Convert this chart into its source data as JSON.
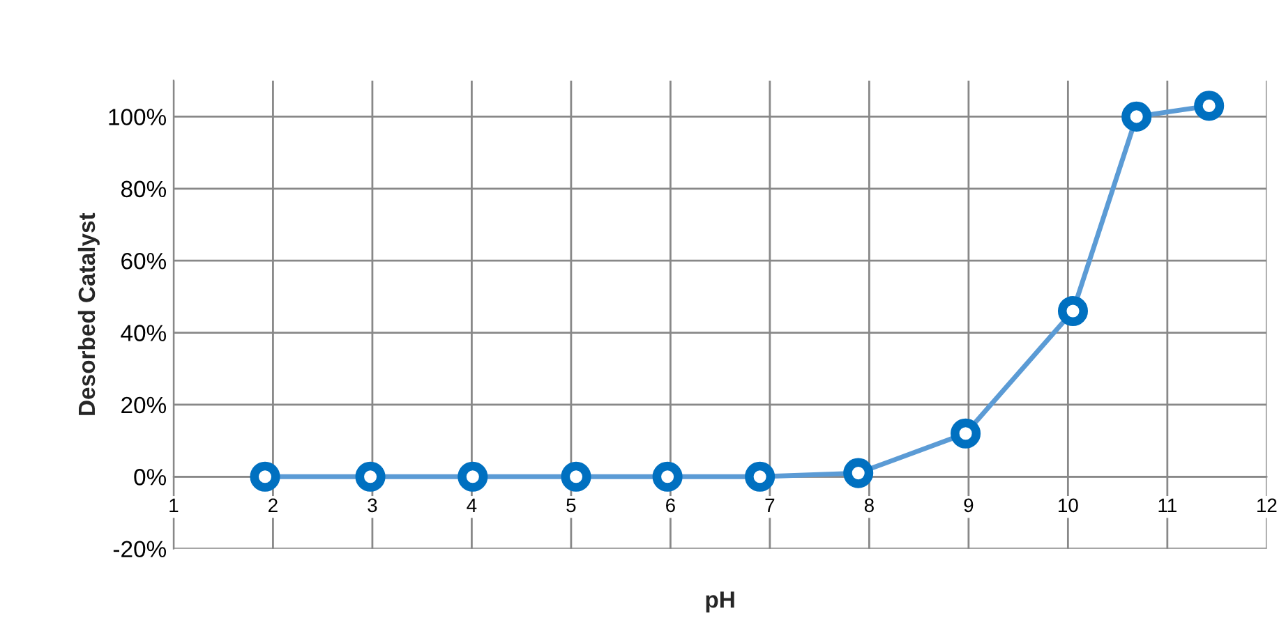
{
  "chart_data": {
    "type": "line",
    "xlabel": "pH",
    "ylabel": "Desorbed Catalyst",
    "series": [
      {
        "color": "#5b9bd5",
        "x": [
          1.92,
          2.98,
          4.01,
          5.05,
          5.97,
          6.9,
          7.89,
          8.97,
          10.05,
          10.69,
          11.42
        ],
        "values": [
          0,
          0,
          0,
          0,
          0,
          0,
          1,
          12,
          46,
          100,
          103
        ]
      }
    ],
    "marker": "circle",
    "line_style": "solid",
    "grid": true,
    "legend": false,
    "xlim": [
      1,
      12
    ],
    "xticks": [
      1,
      2,
      3,
      4,
      5,
      6,
      7,
      8,
      9,
      10,
      11,
      12
    ],
    "ylim": [
      -20,
      110
    ],
    "yticks": [
      {
        "value": -20,
        "label": "-20%"
      },
      {
        "value": 0,
        "label": "0%"
      },
      {
        "value": 20,
        "label": "20%"
      },
      {
        "value": 40,
        "label": "40%"
      },
      {
        "value": 60,
        "label": "60%"
      },
      {
        "value": 80,
        "label": "80%"
      },
      {
        "value": 100,
        "label": "100%"
      }
    ]
  }
}
